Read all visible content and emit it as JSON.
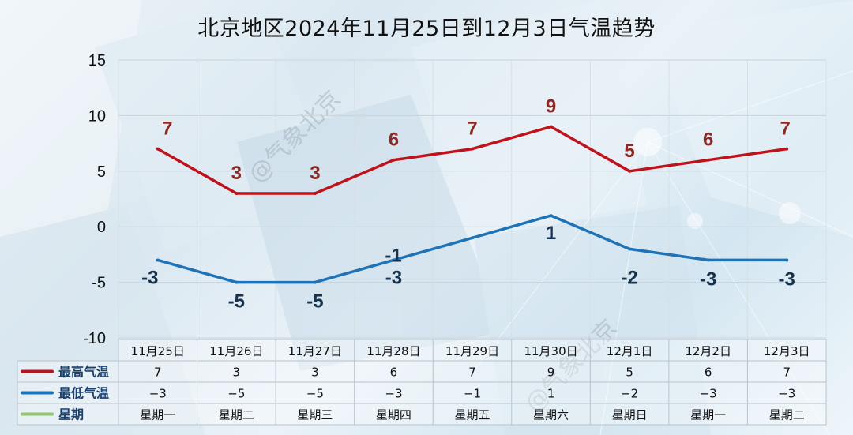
{
  "chart_data": {
    "type": "line",
    "title": "北京地区2024年11月25日到12月3日气温趋势",
    "categories": [
      "11月25日",
      "11月26日",
      "11月27日",
      "11月28日",
      "11月29日",
      "11月30日",
      "12月1日",
      "12月2日",
      "12月3日"
    ],
    "weekdays": [
      "星期一",
      "星期二",
      "星期三",
      "星期四",
      "星期五",
      "星期六",
      "星期日",
      "星期一",
      "星期二"
    ],
    "series": [
      {
        "name": "最高气温",
        "values": [
          7,
          3,
          3,
          6,
          7,
          9,
          5,
          6,
          7
        ],
        "table_values": [
          "7",
          "3",
          "3",
          "6",
          "7",
          "9",
          "5",
          "6",
          "7"
        ],
        "color": "#c0121b"
      },
      {
        "name": "最低气温",
        "values": [
          -3,
          -5,
          -5,
          -3,
          -1,
          1,
          -2,
          -3,
          -3
        ],
        "table_values": [
          "−3",
          "−5",
          "−5",
          "−3",
          "−1",
          "1",
          "−2",
          "−3",
          "−3"
        ],
        "color": "#1e73b6"
      }
    ],
    "weekday_row_label": "星期",
    "weekday_row_color": "#92c46a",
    "high_label_color": "#8b2a24",
    "low_label_color": "#17324f",
    "ylim": [
      -10,
      15
    ],
    "yticks": [
      15,
      10,
      5,
      0,
      -5,
      -10
    ],
    "grid": true,
    "legend": "table-bottom"
  },
  "watermark": "@气象北京"
}
